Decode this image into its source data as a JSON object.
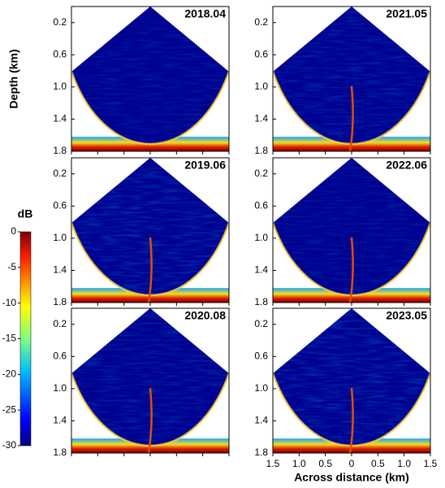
{
  "chart_data": {
    "type": "sonar-fan-grid",
    "ylabel": "Depth (km)",
    "xlabel": "Across distance (km)",
    "ylim": [
      0,
      1.8
    ],
    "y_inverted": true,
    "yticks": [
      0.2,
      0.6,
      {
        "value": 1,
        "label": "1.0"
      },
      1.4,
      1.8
    ],
    "xlim": [
      -1.5,
      1.5
    ],
    "xticks": [
      {
        "value": -1.5,
        "label": "1.5"
      },
      {
        "value": -1,
        "label": "1.0"
      },
      {
        "value": -0.5,
        "label": "0.5"
      },
      0,
      0.5,
      {
        "value": 1,
        "label": "1.0"
      },
      1.5
    ],
    "panels": [
      {
        "title": "2018.04"
      },
      {
        "title": "2021.05"
      },
      {
        "title": "2019.06"
      },
      {
        "title": "2022.06"
      },
      {
        "title": "2020.08"
      },
      {
        "title": "2023.05"
      }
    ],
    "colorbar": {
      "label": "dB",
      "lim": [
        -30,
        0
      ],
      "ticks": [
        0,
        -5,
        -10,
        -15,
        -20,
        -25,
        -30
      ]
    }
  }
}
